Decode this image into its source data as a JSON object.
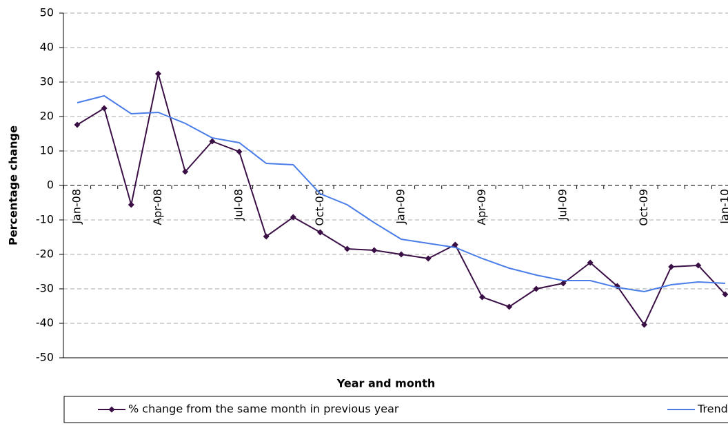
{
  "chart_data": {
    "type": "line",
    "x_label": "Year and month",
    "y_label": "Percentage change",
    "categories": [
      "Jan-08",
      null,
      null,
      "Apr-08",
      null,
      null,
      "Jul-08",
      null,
      null,
      "Oct-08",
      null,
      null,
      "Jan-09",
      null,
      null,
      "Apr-09",
      null,
      null,
      "Jul-09",
      null,
      null,
      "Oct-09",
      null,
      null,
      "Jan-10"
    ],
    "series": [
      {
        "name": "% change from the same month in previous year",
        "color": "#3a0f45",
        "marker": "diamond",
        "values": [
          17.6,
          22.4,
          -5.6,
          32.4,
          4,
          12.8,
          9.8,
          -14.8,
          -9.2,
          -13.6,
          -18.4,
          -18.8,
          -20,
          -21.2,
          -17.2,
          -32.4,
          -35.2,
          -30,
          -28.4,
          -22.4,
          -29.2,
          -40.4,
          -23.6,
          -23.2,
          -31.6
        ]
      },
      {
        "name": "Trend line*",
        "color": "#4a7de8",
        "values": [
          24,
          26,
          20.8,
          21.2,
          18,
          13.8,
          12.4,
          6.4,
          6,
          -2.4,
          -5.6,
          -10.8,
          -15.6,
          -16.8,
          -18,
          -21.2,
          -24,
          -26,
          -27.6,
          -27.6,
          -29.6,
          -30.8,
          -28.8,
          -28,
          -28.4
        ]
      }
    ],
    "ylim": [
      -50,
      50
    ],
    "yticks": [
      -50,
      -40,
      -30,
      -20,
      -10,
      0,
      10,
      20,
      30,
      40,
      50
    ],
    "grid": true
  }
}
